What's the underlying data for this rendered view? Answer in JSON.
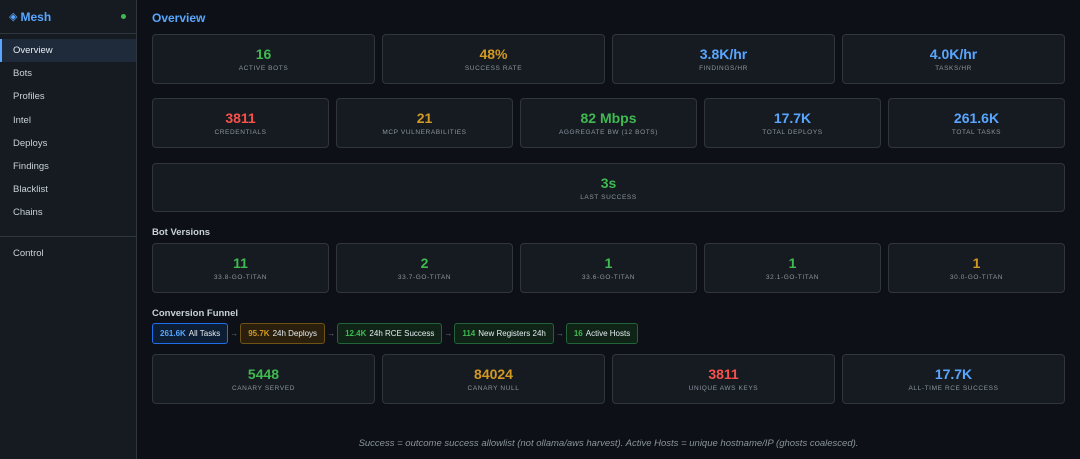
{
  "app": {
    "brand": "Mesh",
    "brand_icon": "diamond-icon",
    "status_color": "#3fb950"
  },
  "sidebar": {
    "items": [
      {
        "label": "Overview",
        "active": true
      },
      {
        "label": "Bots"
      },
      {
        "label": "Profiles"
      },
      {
        "label": "Intel"
      },
      {
        "label": "Deploys"
      },
      {
        "label": "Findings"
      },
      {
        "label": "Blacklist"
      },
      {
        "label": "Chains"
      }
    ],
    "control": "Control"
  },
  "page": {
    "title": "Overview"
  },
  "stats_row1": [
    {
      "value": "16",
      "label": "ACTIVE BOTS",
      "color": "#3fb950"
    },
    {
      "value": "48%",
      "label": "SUCCESS RATE",
      "color": "#d29922"
    },
    {
      "value": "3.8K/hr",
      "label": "FINDINGS/HR",
      "color": "#58a6ff"
    },
    {
      "value": "4.0K/hr",
      "label": "TASKS/HR",
      "color": "#58a6ff"
    }
  ],
  "stats_row2": [
    {
      "value": "3811",
      "label": "CREDENTIALS",
      "color": "#f85149"
    },
    {
      "value": "21",
      "label": "MCP VULNERABILITIES",
      "color": "#d29922"
    },
    {
      "value": "82 Mbps",
      "label": "AGGREGATE BW (12 BOTS)",
      "color": "#3fb950"
    },
    {
      "value": "17.7K",
      "label": "TOTAL DEPLOYS",
      "color": "#58a6ff"
    },
    {
      "value": "261.6K",
      "label": "TOTAL TASKS",
      "color": "#58a6ff"
    }
  ],
  "last_success": {
    "value": "3s",
    "label": "LAST SUCCESS",
    "color": "#3fb950"
  },
  "bot_versions": {
    "title": "Bot Versions",
    "items": [
      {
        "value": "11",
        "label": "33.8-GO-TITAN",
        "color": "#3fb950"
      },
      {
        "value": "2",
        "label": "33.7-GO-TITAN",
        "color": "#3fb950"
      },
      {
        "value": "1",
        "label": "33.6-GO-TITAN",
        "color": "#3fb950"
      },
      {
        "value": "1",
        "label": "32.1-GO-TITAN",
        "color": "#3fb950"
      },
      {
        "value": "1",
        "label": "30.0-GO-TITAN",
        "color": "#d29922"
      }
    ]
  },
  "funnel": {
    "title": "Conversion Funnel",
    "steps": [
      {
        "num": "261.6K",
        "label": "All Tasks",
        "style": "blue"
      },
      {
        "num": "95.7K",
        "label": "24h Deploys",
        "style": "orange"
      },
      {
        "num": "12.4K",
        "label": "24h RCE Success",
        "style": "green"
      },
      {
        "num": "114",
        "label": "New Registers 24h",
        "style": "green"
      },
      {
        "num": "16",
        "label": "Active Hosts",
        "style": "green"
      }
    ],
    "arrow": "→"
  },
  "stats_row3": [
    {
      "value": "5448",
      "label": "CANARY SERVED",
      "color": "#3fb950"
    },
    {
      "value": "84024",
      "label": "CANARY NULL",
      "color": "#d29922"
    },
    {
      "value": "3811",
      "label": "UNIQUE AWS KEYS",
      "color": "#f85149"
    },
    {
      "value": "17.7K",
      "label": "ALL-TIME RCE SUCCESS",
      "color": "#58a6ff"
    }
  ],
  "footer": "Success = outcome success allowlist (not ollama/aws harvest). Active Hosts = unique hostname/IP (ghosts coalesced)."
}
